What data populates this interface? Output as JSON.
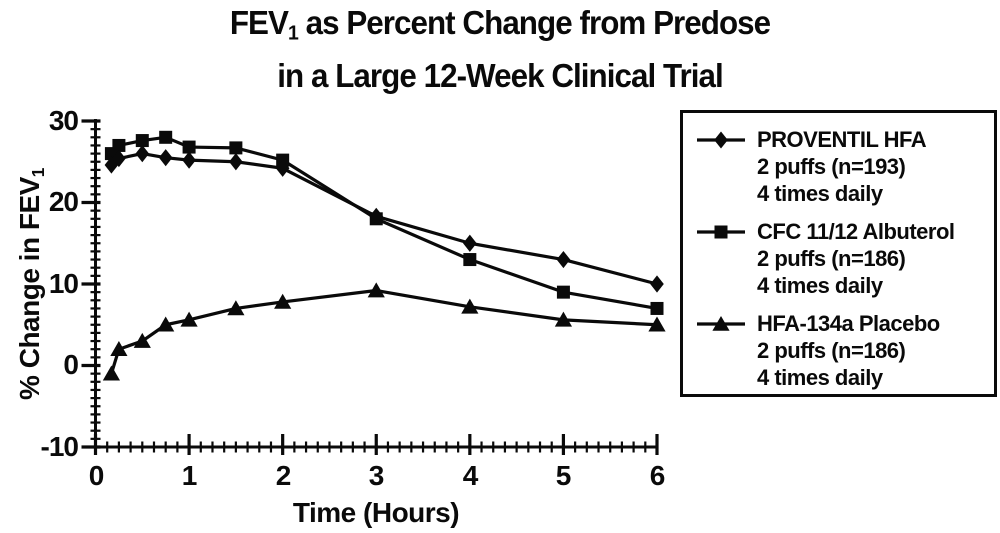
{
  "title": {
    "line1_pre": "FEV",
    "line1_sub": "1",
    "line1_rest": " as Percent Change from Predose",
    "line2": "in a Large 12-Week Clinical Trial"
  },
  "y_axis": {
    "label_pre": "% Change in FEV",
    "label_sub": "1",
    "tick_labels": [
      "30",
      "20",
      "10",
      "0",
      "-10"
    ]
  },
  "x_axis": {
    "label": "Time (Hours)",
    "tick_labels": [
      "0",
      "1",
      "2",
      "3",
      "4",
      "5",
      "6"
    ]
  },
  "legend": {
    "items": [
      {
        "name": "PROVENTIL HFA",
        "dose": "2 puffs (n=193)",
        "frequency": "4 times daily",
        "marker": "diamond"
      },
      {
        "name": "CFC 11/12 Albuterol",
        "dose": "2 puffs (n=186)",
        "frequency": "4 times daily",
        "marker": "square"
      },
      {
        "name": "HFA-134a Placebo",
        "dose": "2 puffs (n=186)",
        "frequency": "4 times daily",
        "marker": "triangle"
      }
    ]
  },
  "colors": {
    "ink": "#0a0a0a",
    "background": "#ffffff"
  },
  "chart_data": {
    "type": "line",
    "title": "FEV1 as Percent Change from Predose in a Large 12-Week Clinical Trial",
    "xlabel": "Time (Hours)",
    "ylabel": "% Change in FEV1",
    "xlim": [
      0,
      6
    ],
    "ylim": [
      -10,
      30
    ],
    "x_major_ticks": [
      0,
      1,
      2,
      3,
      4,
      5,
      6
    ],
    "x_minor_step": 0.125,
    "y_major_ticks": [
      -10,
      0,
      10,
      20,
      30
    ],
    "y_minor_step": 1,
    "grid": false,
    "legend_position": "right",
    "x": [
      0.17,
      0.25,
      0.5,
      0.75,
      1,
      1.5,
      2,
      3,
      4,
      5,
      6
    ],
    "series": [
      {
        "name": "HFA-134a Placebo 2 puffs (n=186) 4 times daily",
        "marker": "triangle",
        "values": [
          -1,
          2,
          3,
          5,
          5.6,
          7,
          7.8,
          9.2,
          7.2,
          5.6,
          5
        ]
      },
      {
        "name": "CFC 11/12 Albuterol 2 puffs (n=186) 4 times daily",
        "marker": "square",
        "values": [
          26,
          27,
          27.6,
          28,
          26.8,
          26.7,
          25.2,
          18,
          13,
          9,
          7
        ]
      },
      {
        "name": "PROVENTIL HFA 2 puffs (n=193) 4 times daily",
        "marker": "diamond",
        "values": [
          24.6,
          25.4,
          26,
          25.5,
          25.2,
          25,
          24.2,
          18.3,
          15,
          13,
          10
        ]
      }
    ]
  }
}
